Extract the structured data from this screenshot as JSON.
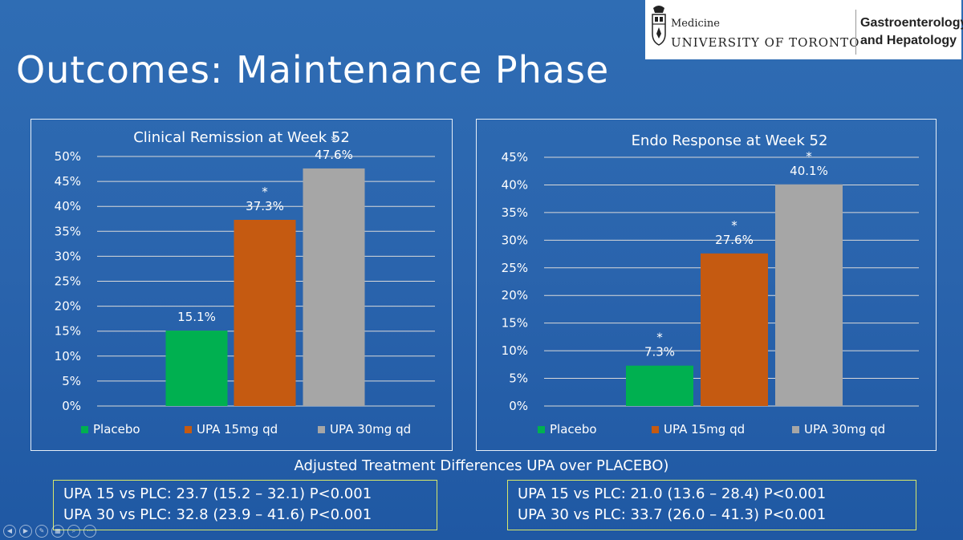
{
  "slide": {
    "title": "Outcomes: Maintenance Phase"
  },
  "logo": {
    "line1": "Medicine",
    "line2": "UNIVERSITY OF TORONTO",
    "dept1": "Gastroenterology",
    "dept2": "and Hepatology",
    "seal": "university-crest-icon"
  },
  "chart_data": [
    {
      "type": "bar",
      "title": "Clinical Remission at Week 52",
      "categories": [
        "Placebo",
        "UPA 15mg qd",
        "UPA 30mg qd"
      ],
      "values": [
        15.1,
        37.3,
        47.6
      ],
      "data_labels": [
        "15.1%",
        "37.3%",
        "47.6%"
      ],
      "significance": [
        "",
        "*",
        "*"
      ],
      "colors": [
        "#00b050",
        "#c55a11",
        "#a6a6a6"
      ],
      "ylim": [
        0,
        50
      ],
      "yticks": [
        0,
        5,
        10,
        15,
        20,
        25,
        30,
        35,
        40,
        45,
        50
      ],
      "ytick_labels": [
        "0%",
        "5%",
        "10%",
        "15%",
        "20%",
        "25%",
        "30%",
        "35%",
        "40%",
        "45%",
        "50%"
      ],
      "grid": true,
      "legend": "bottom"
    },
    {
      "type": "bar",
      "title": "Endo Response at Week 52",
      "categories": [
        "Placebo",
        "UPA 15mg qd",
        "UPA 30mg qd"
      ],
      "values": [
        7.3,
        27.6,
        40.1
      ],
      "data_labels": [
        "7.3%",
        "27.6%",
        "40.1%"
      ],
      "significance": [
        "*",
        "*",
        "*"
      ],
      "colors": [
        "#00b050",
        "#c55a11",
        "#a6a6a6"
      ],
      "ylim": [
        0,
        45
      ],
      "yticks": [
        0,
        5,
        10,
        15,
        20,
        25,
        30,
        35,
        40,
        45
      ],
      "ytick_labels": [
        "0%",
        "5%",
        "10%",
        "15%",
        "20%",
        "25%",
        "30%",
        "35%",
        "40%",
        "45%"
      ],
      "grid": true,
      "legend": "bottom"
    }
  ],
  "adjusted": {
    "title": "Adjusted Treatment Differences  UPA over PLACEBO)",
    "left": [
      "UPA 15 vs PLC:  23.7 (15.2 – 32.1)  P<0.001",
      "UPA 30 vs PLC: 32.8 (23.9 – 41.6)  P<0.001"
    ],
    "right": [
      "UPA 15 vs PLC:   21.0 (13.6 – 28.4)  P<0.001",
      "UPA 30 vs PLC:  33.7 (26.0 – 41.3)  P<0.001"
    ]
  },
  "nav_icons": [
    "prev-icon",
    "next-icon",
    "pen-icon",
    "slides-icon",
    "zoom-icon",
    "more-icon"
  ]
}
